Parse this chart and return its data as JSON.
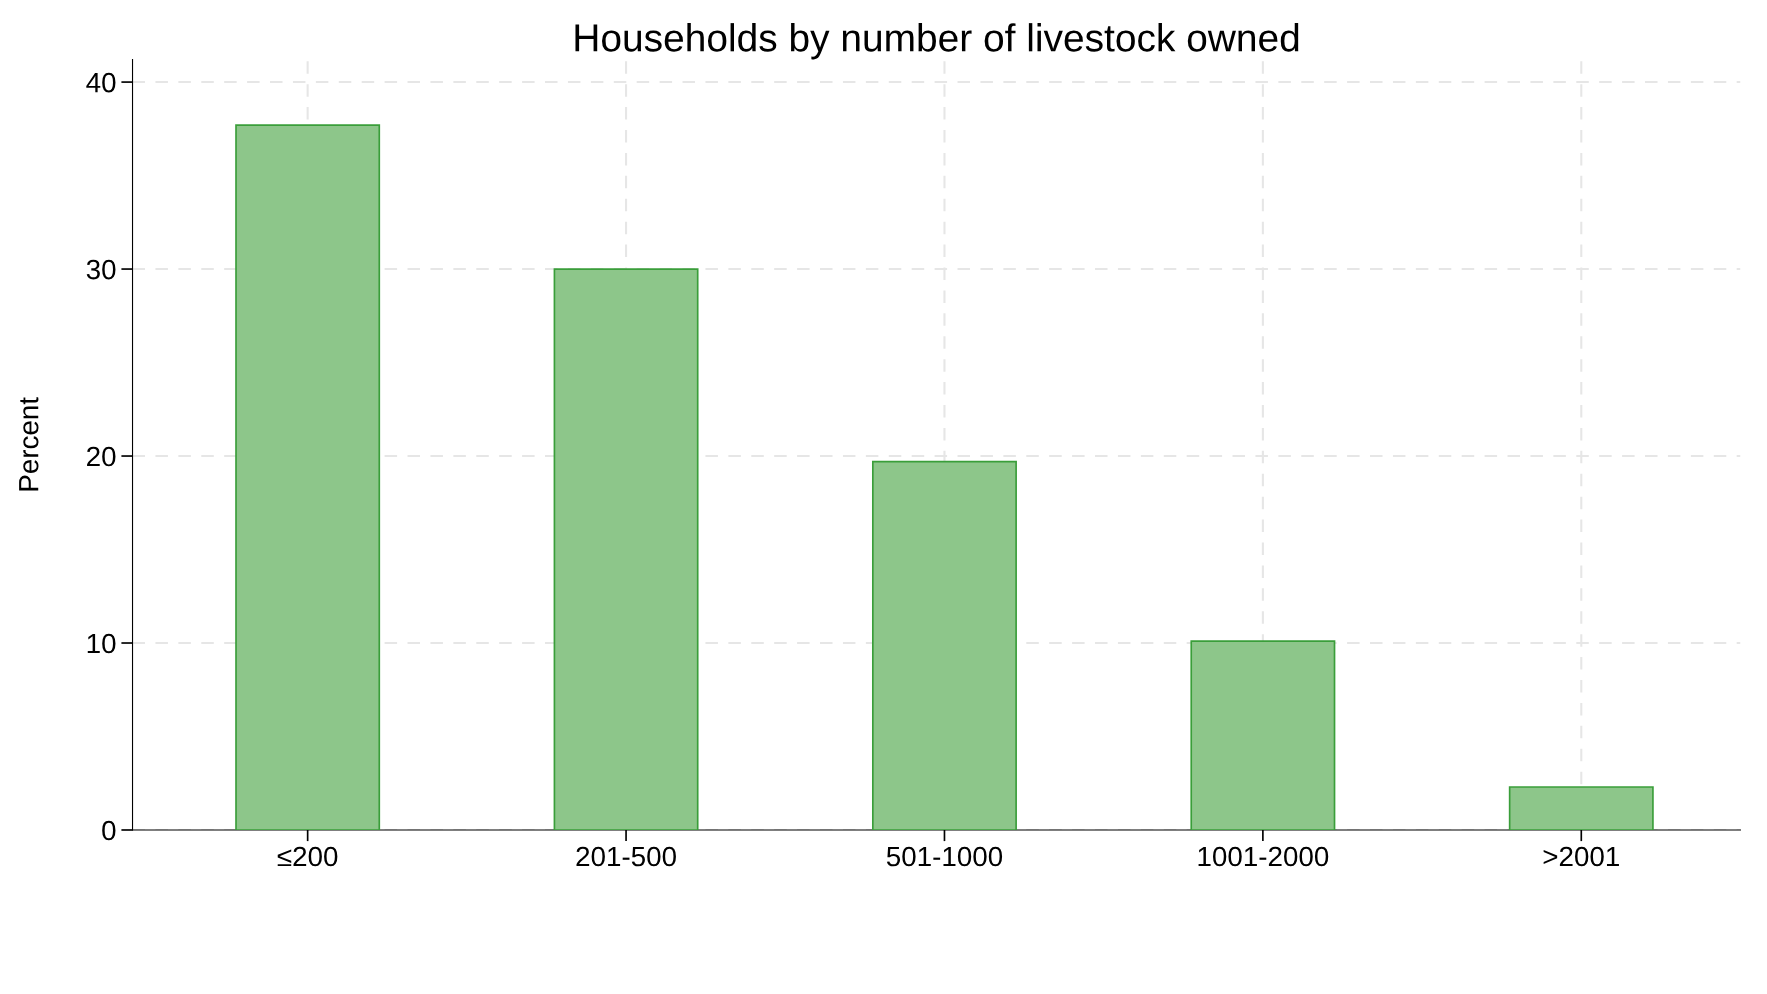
{
  "chart_data": {
    "type": "bar",
    "title": "Households by number of livestock owned",
    "ylabel": "Percent",
    "categories": [
      "≤200",
      "201-500",
      "501-1000",
      "1001-2000",
      ">2001"
    ],
    "values": [
      37.7,
      30.0,
      19.7,
      10.1,
      2.3
    ],
    "color": "#8dc68a",
    "ylim": [
      0,
      41.2
    ],
    "yticks": [
      0,
      10,
      20,
      30,
      40
    ],
    "grid": true
  }
}
